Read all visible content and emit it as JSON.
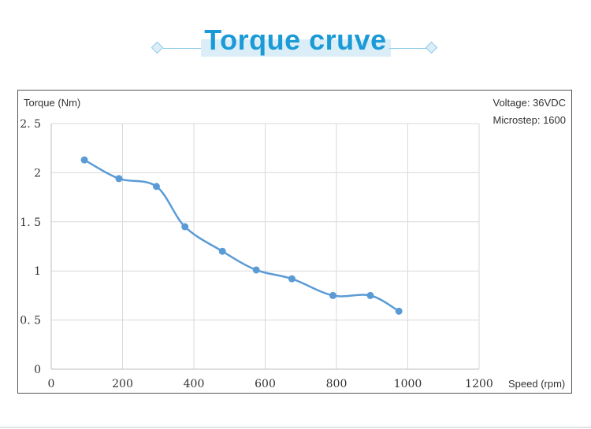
{
  "title": "Torque cruve",
  "annotations": {
    "voltage": "Voltage: 36VDC",
    "microstep": "Microstep: 1600"
  },
  "colors": {
    "title": "#1a9ad6",
    "series": "#5b9bd5",
    "grid": "#d9d9d9"
  },
  "chart_data": {
    "type": "line",
    "title": "",
    "xlabel": "Speed (rpm)",
    "ylabel": "Torque (Nm)",
    "xlim": [
      0,
      1200
    ],
    "ylim": [
      0,
      2.5
    ],
    "xticks": [
      "0",
      "200",
      "400",
      "600",
      "800",
      "1000",
      "1200"
    ],
    "yticks": [
      "0",
      "0.5",
      "1",
      "1.5",
      "2",
      "2.5"
    ],
    "grid": true,
    "series": [
      {
        "x": [
          93,
          190,
          295,
          375,
          480,
          575,
          675,
          790,
          895,
          975
        ],
        "y": [
          2.13,
          1.94,
          1.86,
          1.45,
          1.2,
          1.01,
          0.92,
          0.75,
          0.75,
          0.59
        ]
      }
    ]
  }
}
